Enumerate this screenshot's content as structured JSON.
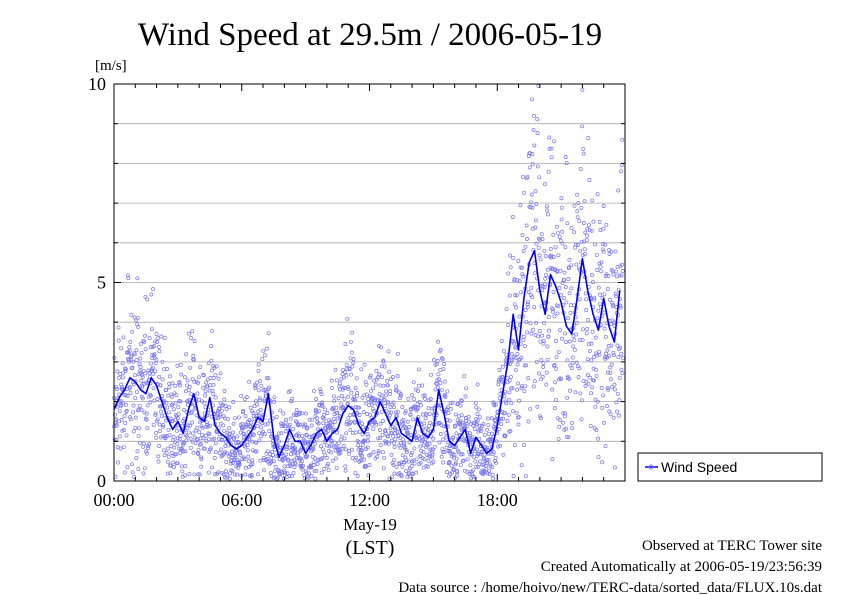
{
  "chart_data": {
    "type": "line",
    "title": "Wind Speed at 29.5m / 2006-05-19",
    "ylabel": "[m/s]",
    "xlabel_date": "May-19",
    "xlabel_unit": "(LST)",
    "ylim": [
      0,
      10
    ],
    "xlim": [
      0,
      24
    ],
    "y_ticks": [
      0,
      5,
      10
    ],
    "y_tick_labels": [
      "0",
      "5",
      "10"
    ],
    "x_ticks": [
      0,
      6,
      12,
      18
    ],
    "x_tick_labels": [
      "00:00",
      "06:00",
      "12:00",
      "18:00"
    ],
    "grid": true,
    "grid_step": 1,
    "legend": {
      "position": "right",
      "entries": [
        "Wind Speed"
      ]
    },
    "colors": {
      "scatter": "#7878ee",
      "line": "#0000ee"
    },
    "series": [
      {
        "name": "Wind Speed",
        "x": [
          0.0,
          0.25,
          0.5,
          0.75,
          1.0,
          1.25,
          1.5,
          1.75,
          2.0,
          2.25,
          2.5,
          2.75,
          3.0,
          3.25,
          3.5,
          3.75,
          4.0,
          4.25,
          4.5,
          4.75,
          5.0,
          5.25,
          5.5,
          5.75,
          6.0,
          6.25,
          6.5,
          6.75,
          7.0,
          7.25,
          7.5,
          7.75,
          8.0,
          8.25,
          8.5,
          8.75,
          9.0,
          9.25,
          9.5,
          9.75,
          10.0,
          10.25,
          10.5,
          10.75,
          11.0,
          11.25,
          11.5,
          11.75,
          12.0,
          12.25,
          12.5,
          12.75,
          13.0,
          13.25,
          13.5,
          13.75,
          14.0,
          14.25,
          14.5,
          14.75,
          15.0,
          15.25,
          15.5,
          15.75,
          16.0,
          16.25,
          16.5,
          16.75,
          17.0,
          17.25,
          17.5,
          17.75,
          18.0,
          18.25,
          18.5,
          18.75,
          19.0,
          19.25,
          19.5,
          19.75,
          20.0,
          20.25,
          20.5,
          20.75,
          21.0,
          21.25,
          21.5,
          21.75,
          22.0,
          22.25,
          22.5,
          22.75,
          23.0,
          23.25,
          23.5,
          23.75
        ],
        "y": [
          1.8,
          2.1,
          2.3,
          2.6,
          2.5,
          2.3,
          2.2,
          2.6,
          2.4,
          2.0,
          1.6,
          1.3,
          1.5,
          1.2,
          1.8,
          2.2,
          1.6,
          1.5,
          2.1,
          1.4,
          1.2,
          1.1,
          0.9,
          0.8,
          0.9,
          1.1,
          1.3,
          1.6,
          1.5,
          2.2,
          1.1,
          0.6,
          0.9,
          1.3,
          1.0,
          1.0,
          0.7,
          0.9,
          1.2,
          1.3,
          1.0,
          1.2,
          1.3,
          1.7,
          1.9,
          1.8,
          1.4,
          1.2,
          1.5,
          1.6,
          2.0,
          1.7,
          1.4,
          1.6,
          1.2,
          1.1,
          1.0,
          1.6,
          1.2,
          1.1,
          1.3,
          2.3,
          1.7,
          1.0,
          0.9,
          1.1,
          1.3,
          0.7,
          1.1,
          0.9,
          0.7,
          0.8,
          1.4,
          2.2,
          3.0,
          4.2,
          3.3,
          4.6,
          5.5,
          5.8,
          4.8,
          4.2,
          5.2,
          4.9,
          4.5,
          3.9,
          3.7,
          4.6,
          5.6,
          4.8,
          4.2,
          3.8,
          4.6,
          3.9,
          3.5,
          4.8
        ]
      }
    ]
  },
  "footer": {
    "line1": "Observed at TERC Tower site",
    "line2": "Created Automatically at 2006-05-19/23:56:39",
    "line3": "Data source : /home/hoivo/new/TERC-data/sorted_data/FLUX.10s.dat"
  }
}
